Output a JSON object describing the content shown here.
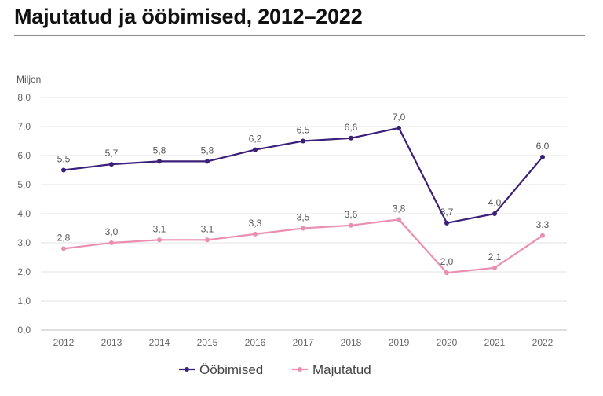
{
  "title": "Majutatud ja ööbimised, 2012–2022",
  "chart_data": {
    "type": "line",
    "title": "Majutatud ja ööbimised, 2012–2022",
    "ylabel": "Miljon",
    "xlabel": "",
    "categories": [
      "2012",
      "2013",
      "2014",
      "2015",
      "2016",
      "2017",
      "2018",
      "2019",
      "2020",
      "2021",
      "2022"
    ],
    "ylim": [
      0,
      8
    ],
    "yticks": [
      "0,0",
      "1,0",
      "2,0",
      "3,0",
      "4,0",
      "5,0",
      "6,0",
      "7,0",
      "8,0"
    ],
    "grid": true,
    "legend_position": "bottom",
    "series": [
      {
        "name": "Ööbimised",
        "color": "#3b1f7a",
        "values": [
          5.5,
          5.7,
          5.8,
          5.8,
          6.2,
          6.5,
          6.6,
          6.95,
          3.68,
          4.0,
          5.95
        ],
        "labels": [
          "5,5",
          "5,7",
          "5,8",
          "5,8",
          "6,2",
          "6,5",
          "6,6",
          "7,0",
          "3,7",
          "4,0",
          "6,0"
        ]
      },
      {
        "name": "Majutatud",
        "color": "#ea8fb2",
        "values": [
          2.8,
          3.0,
          3.1,
          3.1,
          3.3,
          3.5,
          3.6,
          3.8,
          1.97,
          2.14,
          3.25
        ],
        "labels": [
          "2,8",
          "3,0",
          "3,1",
          "3,1",
          "3,3",
          "3,5",
          "3,6",
          "3,8",
          "2,0",
          "2,1",
          "3,3"
        ]
      }
    ]
  }
}
